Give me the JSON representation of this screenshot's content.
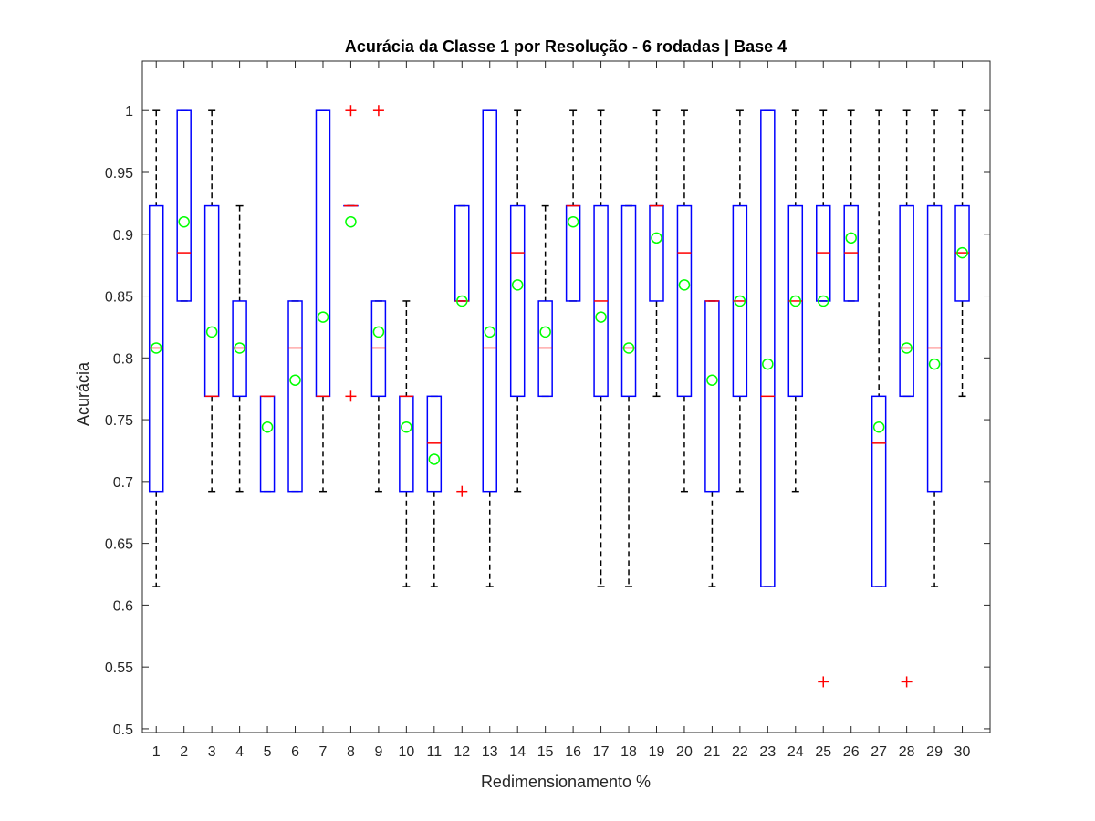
{
  "chart_data": {
    "type": "boxplot",
    "title": "Acurácia da Classe 1 por Resolução - 6 rodadas | Base 4",
    "xlabel": "Redimensionamento %",
    "ylabel": "Acurácia",
    "ylim": [
      0.497,
      1.04
    ],
    "yticks": [
      0.5,
      0.55,
      0.6,
      0.65,
      0.7,
      0.75,
      0.8,
      0.85,
      0.9,
      0.95,
      1
    ],
    "ytick_labels": [
      "0.5",
      "0.55",
      "0.6",
      "0.65",
      "0.7",
      "0.75",
      "0.8",
      "0.85",
      "0.9",
      "0.95",
      "1"
    ],
    "categories": [
      "1",
      "2",
      "3",
      "4",
      "5",
      "6",
      "7",
      "8",
      "9",
      "10",
      "11",
      "12",
      "13",
      "14",
      "15",
      "16",
      "17",
      "18",
      "19",
      "20",
      "21",
      "22",
      "23",
      "24",
      "25",
      "26",
      "27",
      "28",
      "29",
      "30"
    ],
    "grid": false,
    "colors": {
      "box": "#0000ff",
      "median": "#ff0000",
      "whisker": "#000000",
      "outlier": "#ff0000",
      "mean": "#00ff00"
    },
    "boxes": [
      {
        "q1": 0.692,
        "median": 0.808,
        "q3": 0.923,
        "whisker_low": 0.615,
        "whisker_high": 1.0,
        "mean": 0.808,
        "outliers": []
      },
      {
        "q1": 0.846,
        "median": 0.885,
        "q3": 1.0,
        "whisker_low": 0.846,
        "whisker_high": 1.0,
        "mean": 0.91,
        "outliers": []
      },
      {
        "q1": 0.769,
        "median": 0.769,
        "q3": 0.923,
        "whisker_low": 0.692,
        "whisker_high": 1.0,
        "mean": 0.821,
        "outliers": []
      },
      {
        "q1": 0.769,
        "median": 0.808,
        "q3": 0.846,
        "whisker_low": 0.692,
        "whisker_high": 0.923,
        "mean": 0.808,
        "outliers": []
      },
      {
        "q1": 0.692,
        "median": 0.769,
        "q3": 0.769,
        "whisker_low": 0.692,
        "whisker_high": 0.769,
        "mean": 0.744,
        "outliers": []
      },
      {
        "q1": 0.692,
        "median": 0.808,
        "q3": 0.846,
        "whisker_low": 0.692,
        "whisker_high": 0.846,
        "mean": 0.782,
        "outliers": []
      },
      {
        "q1": 0.769,
        "median": 0.769,
        "q3": 1.0,
        "whisker_low": 0.692,
        "whisker_high": 1.0,
        "mean": 0.833,
        "outliers": []
      },
      {
        "q1": 0.923,
        "median": 0.923,
        "q3": 0.923,
        "whisker_low": 0.923,
        "whisker_high": 0.923,
        "mean": 0.91,
        "outliers": [
          1.0,
          0.769
        ]
      },
      {
        "q1": 0.769,
        "median": 0.808,
        "q3": 0.846,
        "whisker_low": 0.692,
        "whisker_high": 0.846,
        "mean": 0.821,
        "outliers": [
          1.0
        ]
      },
      {
        "q1": 0.692,
        "median": 0.769,
        "q3": 0.769,
        "whisker_low": 0.615,
        "whisker_high": 0.846,
        "mean": 0.744,
        "outliers": []
      },
      {
        "q1": 0.692,
        "median": 0.731,
        "q3": 0.769,
        "whisker_low": 0.615,
        "whisker_high": 0.769,
        "mean": 0.718,
        "outliers": []
      },
      {
        "q1": 0.846,
        "median": 0.846,
        "q3": 0.923,
        "whisker_low": 0.846,
        "whisker_high": 0.923,
        "mean": 0.846,
        "outliers": [
          0.692
        ]
      },
      {
        "q1": 0.692,
        "median": 0.808,
        "q3": 1.0,
        "whisker_low": 0.615,
        "whisker_high": 1.0,
        "mean": 0.821,
        "outliers": []
      },
      {
        "q1": 0.769,
        "median": 0.885,
        "q3": 0.923,
        "whisker_low": 0.692,
        "whisker_high": 1.0,
        "mean": 0.859,
        "outliers": []
      },
      {
        "q1": 0.769,
        "median": 0.808,
        "q3": 0.846,
        "whisker_low": 0.769,
        "whisker_high": 0.923,
        "mean": 0.821,
        "outliers": []
      },
      {
        "q1": 0.846,
        "median": 0.923,
        "q3": 0.923,
        "whisker_low": 0.846,
        "whisker_high": 1.0,
        "mean": 0.91,
        "outliers": []
      },
      {
        "q1": 0.769,
        "median": 0.846,
        "q3": 0.923,
        "whisker_low": 0.615,
        "whisker_high": 1.0,
        "mean": 0.833,
        "outliers": []
      },
      {
        "q1": 0.769,
        "median": 0.808,
        "q3": 0.923,
        "whisker_low": 0.615,
        "whisker_high": 0.923,
        "mean": 0.808,
        "outliers": []
      },
      {
        "q1": 0.846,
        "median": 0.923,
        "q3": 0.923,
        "whisker_low": 0.769,
        "whisker_high": 1.0,
        "mean": 0.897,
        "outliers": []
      },
      {
        "q1": 0.769,
        "median": 0.885,
        "q3": 0.923,
        "whisker_low": 0.692,
        "whisker_high": 1.0,
        "mean": 0.859,
        "outliers": []
      },
      {
        "q1": 0.692,
        "median": 0.846,
        "q3": 0.846,
        "whisker_low": 0.615,
        "whisker_high": 0.846,
        "mean": 0.782,
        "outliers": []
      },
      {
        "q1": 0.769,
        "median": 0.846,
        "q3": 0.923,
        "whisker_low": 0.692,
        "whisker_high": 1.0,
        "mean": 0.846,
        "outliers": []
      },
      {
        "q1": 0.615,
        "median": 0.769,
        "q3": 1.0,
        "whisker_low": 0.615,
        "whisker_high": 1.0,
        "mean": 0.795,
        "outliers": []
      },
      {
        "q1": 0.769,
        "median": 0.846,
        "q3": 0.923,
        "whisker_low": 0.692,
        "whisker_high": 1.0,
        "mean": 0.846,
        "outliers": []
      },
      {
        "q1": 0.846,
        "median": 0.885,
        "q3": 0.923,
        "whisker_low": 0.846,
        "whisker_high": 1.0,
        "mean": 0.846,
        "outliers": [
          0.538
        ]
      },
      {
        "q1": 0.846,
        "median": 0.885,
        "q3": 0.923,
        "whisker_low": 0.846,
        "whisker_high": 1.0,
        "mean": 0.897,
        "outliers": []
      },
      {
        "q1": 0.615,
        "median": 0.731,
        "q3": 0.769,
        "whisker_low": 0.615,
        "whisker_high": 1.0,
        "mean": 0.744,
        "outliers": []
      },
      {
        "q1": 0.769,
        "median": 0.808,
        "q3": 0.923,
        "whisker_low": 0.769,
        "whisker_high": 1.0,
        "mean": 0.808,
        "outliers": [
          0.538
        ]
      },
      {
        "q1": 0.692,
        "median": 0.808,
        "q3": 0.923,
        "whisker_low": 0.615,
        "whisker_high": 1.0,
        "mean": 0.795,
        "outliers": []
      },
      {
        "q1": 0.846,
        "median": 0.885,
        "q3": 0.923,
        "whisker_low": 0.769,
        "whisker_high": 1.0,
        "mean": 0.885,
        "outliers": []
      }
    ]
  }
}
